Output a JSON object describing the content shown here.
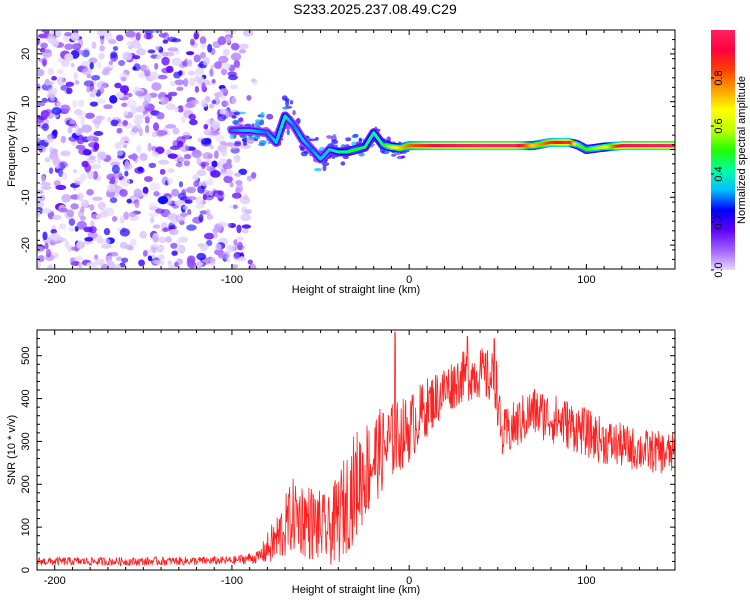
{
  "title": "S233.2025.237.08.49.C29",
  "chart_data": [
    {
      "type": "heatmap",
      "xlabel": "Height of straight line (km)",
      "ylabel": "Frequency (Hz)",
      "xlim": [
        -210,
        150
      ],
      "ylim": [
        -25,
        25
      ],
      "xticks": [
        -200,
        -100,
        0,
        100
      ],
      "xtick_labels": [
        "-200",
        "-100",
        "0",
        "100"
      ],
      "yticks": [
        20,
        10,
        0,
        -10,
        -20
      ],
      "ytick_labels": [
        "20",
        "10",
        "0",
        "-10",
        "-20"
      ],
      "colorbar": {
        "label": "Normalized spectral amplitude",
        "range": [
          0,
          1
        ],
        "ticks": [
          0.0,
          0.2,
          0.4,
          0.6,
          0.8
        ],
        "tick_labels": [
          "0.0",
          "0.2",
          "0.4",
          "0.6",
          "0.8"
        ],
        "colors": [
          "#e6d8ff",
          "#a060ff",
          "#6000ff",
          "#0000ff",
          "#00c0ff",
          "#00ffa0",
          "#20ff00",
          "#c0ff00",
          "#ffff00",
          "#ffa000",
          "#ff4000",
          "#ff0040",
          "#ff2060"
        ]
      },
      "ridge": [
        {
          "x": -100,
          "f": 4.0,
          "a": 0.2
        },
        {
          "x": -90,
          "f": 4.0,
          "a": 0.25
        },
        {
          "x": -80,
          "f": 3.5,
          "a": 0.2
        },
        {
          "x": -75,
          "f": 1.5,
          "a": 0.25
        },
        {
          "x": -70,
          "f": 7.0,
          "a": 0.3
        },
        {
          "x": -65,
          "f": 5.0,
          "a": 0.2
        },
        {
          "x": -60,
          "f": 2.0,
          "a": 0.25
        },
        {
          "x": -55,
          "f": 0.0,
          "a": 0.2
        },
        {
          "x": -50,
          "f": -2.0,
          "a": 0.25
        },
        {
          "x": -45,
          "f": 0.0,
          "a": 0.25
        },
        {
          "x": -40,
          "f": -0.5,
          "a": 0.3
        },
        {
          "x": -35,
          "f": -0.5,
          "a": 0.35
        },
        {
          "x": -30,
          "f": 0.0,
          "a": 0.4
        },
        {
          "x": -25,
          "f": 0.5,
          "a": 0.35
        },
        {
          "x": -20,
          "f": 3.5,
          "a": 0.3
        },
        {
          "x": -15,
          "f": 1.0,
          "a": 0.35
        },
        {
          "x": -10,
          "f": 0.5,
          "a": 0.5
        },
        {
          "x": -5,
          "f": 0.3,
          "a": 0.6
        },
        {
          "x": 0,
          "f": 0.8,
          "a": 0.7
        },
        {
          "x": 20,
          "f": 0.8,
          "a": 0.85
        },
        {
          "x": 40,
          "f": 0.8,
          "a": 0.9
        },
        {
          "x": 60,
          "f": 0.8,
          "a": 0.9
        },
        {
          "x": 70,
          "f": 0.8,
          "a": 0.6
        },
        {
          "x": 80,
          "f": 1.5,
          "a": 0.75
        },
        {
          "x": 90,
          "f": 1.5,
          "a": 0.9
        },
        {
          "x": 95,
          "f": 1.0,
          "a": 0.45
        },
        {
          "x": 100,
          "f": 0.0,
          "a": 0.4
        },
        {
          "x": 110,
          "f": 0.5,
          "a": 0.5
        },
        {
          "x": 120,
          "f": 0.8,
          "a": 0.85
        },
        {
          "x": 150,
          "f": 0.8,
          "a": 0.9
        }
      ],
      "noise_region": {
        "x_from": -210,
        "x_to": -85
      }
    },
    {
      "type": "line",
      "xlabel": "Height of straight line (km)",
      "ylabel": "SNR (10 * v/v)",
      "xlim": [
        -210,
        150
      ],
      "ylim": [
        0,
        560
      ],
      "xticks": [
        -200,
        -100,
        0,
        100
      ],
      "xtick_labels": [
        "-200",
        "-100",
        "0",
        "100"
      ],
      "yticks": [
        0,
        100,
        200,
        300,
        400,
        500
      ],
      "ytick_labels": [
        "0",
        "100",
        "200",
        "300",
        "400",
        "500"
      ],
      "series": [
        {
          "name": "SNR",
          "color": "#ff2020",
          "envelope": [
            {
              "x": -210,
              "mean": 20,
              "spread": 10
            },
            {
              "x": -150,
              "mean": 20,
              "spread": 10
            },
            {
              "x": -100,
              "mean": 22,
              "spread": 10
            },
            {
              "x": -85,
              "mean": 30,
              "spread": 15
            },
            {
              "x": -75,
              "mean": 70,
              "spread": 60
            },
            {
              "x": -65,
              "mean": 130,
              "spread": 90
            },
            {
              "x": -55,
              "mean": 110,
              "spread": 90
            },
            {
              "x": -45,
              "mean": 90,
              "spread": 80
            },
            {
              "x": -40,
              "mean": 120,
              "spread": 110
            },
            {
              "x": -30,
              "mean": 200,
              "spread": 130
            },
            {
              "x": -20,
              "mean": 260,
              "spread": 110
            },
            {
              "x": -10,
              "mean": 300,
              "spread": 90
            },
            {
              "x": 0,
              "mean": 330,
              "spread": 80
            },
            {
              "x": 10,
              "mean": 380,
              "spread": 70
            },
            {
              "x": 20,
              "mean": 420,
              "spread": 60
            },
            {
              "x": 30,
              "mean": 450,
              "spread": 60
            },
            {
              "x": 40,
              "mean": 460,
              "spread": 60
            },
            {
              "x": 49,
              "mean": 440,
              "spread": 70
            },
            {
              "x": 52,
              "mean": 310,
              "spread": 60
            },
            {
              "x": 70,
              "mean": 370,
              "spread": 60
            },
            {
              "x": 90,
              "mean": 340,
              "spread": 60
            },
            {
              "x": 110,
              "mean": 300,
              "spread": 55
            },
            {
              "x": 130,
              "mean": 280,
              "spread": 50
            },
            {
              "x": 150,
              "mean": 270,
              "spread": 50
            }
          ],
          "peaks": [
            {
              "x": -8,
              "y": 555
            },
            {
              "x": 33,
              "y": 545
            },
            {
              "x": 48,
              "y": 540
            }
          ]
        }
      ]
    }
  ]
}
